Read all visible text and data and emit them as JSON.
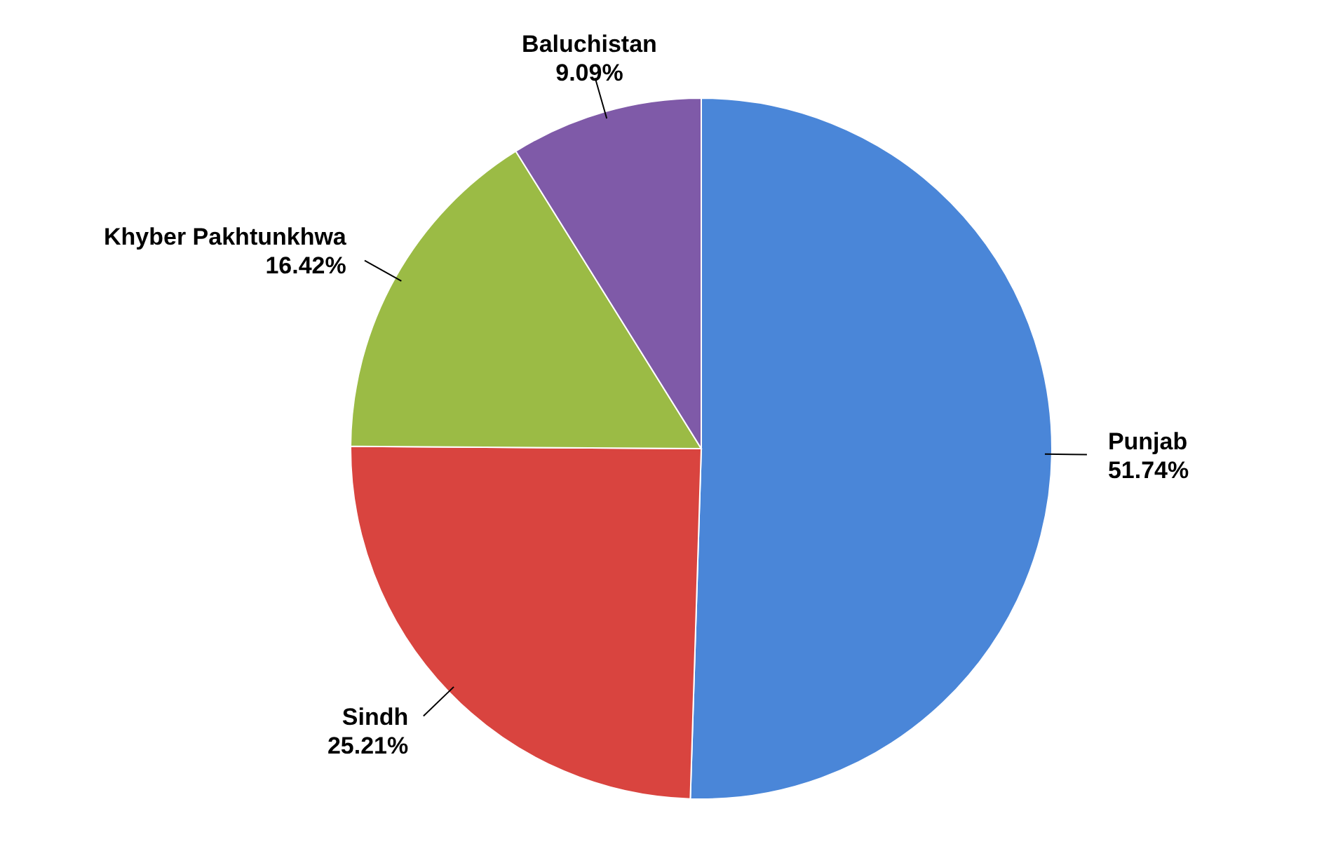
{
  "chart_data": {
    "type": "pie",
    "categories": [
      "Punjab",
      "Sindh",
      "Khyber Pakhtunkhwa",
      "Baluchistan"
    ],
    "values": [
      51.74,
      25.21,
      16.42,
      9.09
    ],
    "value_labels": [
      "51.74%",
      "25.21%",
      "16.42%",
      "9.09%"
    ],
    "colors": [
      "#4a86d8",
      "#d9443f",
      "#9bbb45",
      "#7f5aa8"
    ],
    "legend": false
  }
}
